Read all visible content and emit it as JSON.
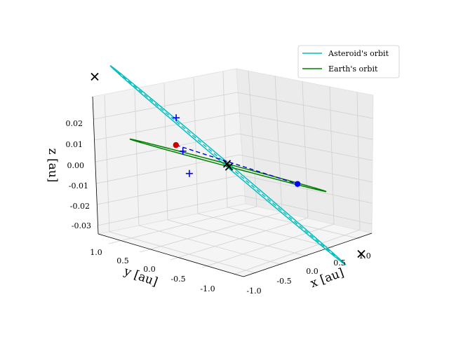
{
  "chart_data": {
    "type": "line3d",
    "title": "",
    "xlabel": "x [au]",
    "ylabel": "y [au]",
    "zlabel": "z [au]",
    "xlim": [
      -1.3,
      1.3
    ],
    "ylim": [
      -1.3,
      1.3
    ],
    "zlim": [
      -0.035,
      0.03
    ],
    "x_ticks": [
      "-1.0",
      "-0.5",
      "0.0",
      "0.5",
      "1.0"
    ],
    "y_ticks": [
      "-1.0",
      "-0.5",
      "0.0",
      "0.5",
      "1.0"
    ],
    "z_ticks": [
      "-0.03",
      "-0.02",
      "-0.01",
      "0.00",
      "0.01",
      "0.02"
    ],
    "grid": true,
    "legend": {
      "placement": "top-right",
      "entries": [
        {
          "label": "Asteroid's orbit",
          "color": "#00bfbf"
        },
        {
          "label": "Earth's orbit",
          "color": "#008000"
        }
      ]
    },
    "series": [
      {
        "name": "Asteroid's orbit",
        "kind": "ellipse",
        "color": "#00bfbf",
        "semi_major_axis_au": 1.2,
        "semi_minor_axis_au": 0.42,
        "major_axis_angle_deg": -40,
        "tilt_z_au": 0.032
      },
      {
        "name": "Earth's orbit",
        "kind": "circle",
        "color": "#008000",
        "radius_au": 1.0
      }
    ],
    "markers": [
      {
        "kind": "x",
        "color": "#000000",
        "x": -0.92,
        "y": 1.0,
        "z": 0.025
      },
      {
        "kind": "x",
        "color": "#000000",
        "x": 0.92,
        "y": -1.0,
        "z": -0.025
      },
      {
        "kind": "x",
        "color": "#000000",
        "x": 0.71,
        "y": 0.71,
        "z": 0.0
      },
      {
        "kind": "x",
        "color": "#000000",
        "x": -0.71,
        "y": -0.71,
        "z": 0.0
      },
      {
        "kind": "point",
        "color": "#0000ff",
        "x": 0.55,
        "y": -0.45,
        "z": 0.0
      },
      {
        "kind": "point",
        "color": "#cc0000",
        "x": -0.35,
        "y": 0.4,
        "z": 0.003
      },
      {
        "kind": "plus",
        "color": "#0000ff",
        "x": -0.2,
        "y": 0.55,
        "z": 0.016
      },
      {
        "kind": "plus",
        "color": "#0000ff",
        "x": -0.3,
        "y": 0.35,
        "z": 0.001
      },
      {
        "kind": "plus",
        "color": "#0000ff",
        "x": -0.6,
        "y": -0.05,
        "z": -0.009
      }
    ]
  }
}
